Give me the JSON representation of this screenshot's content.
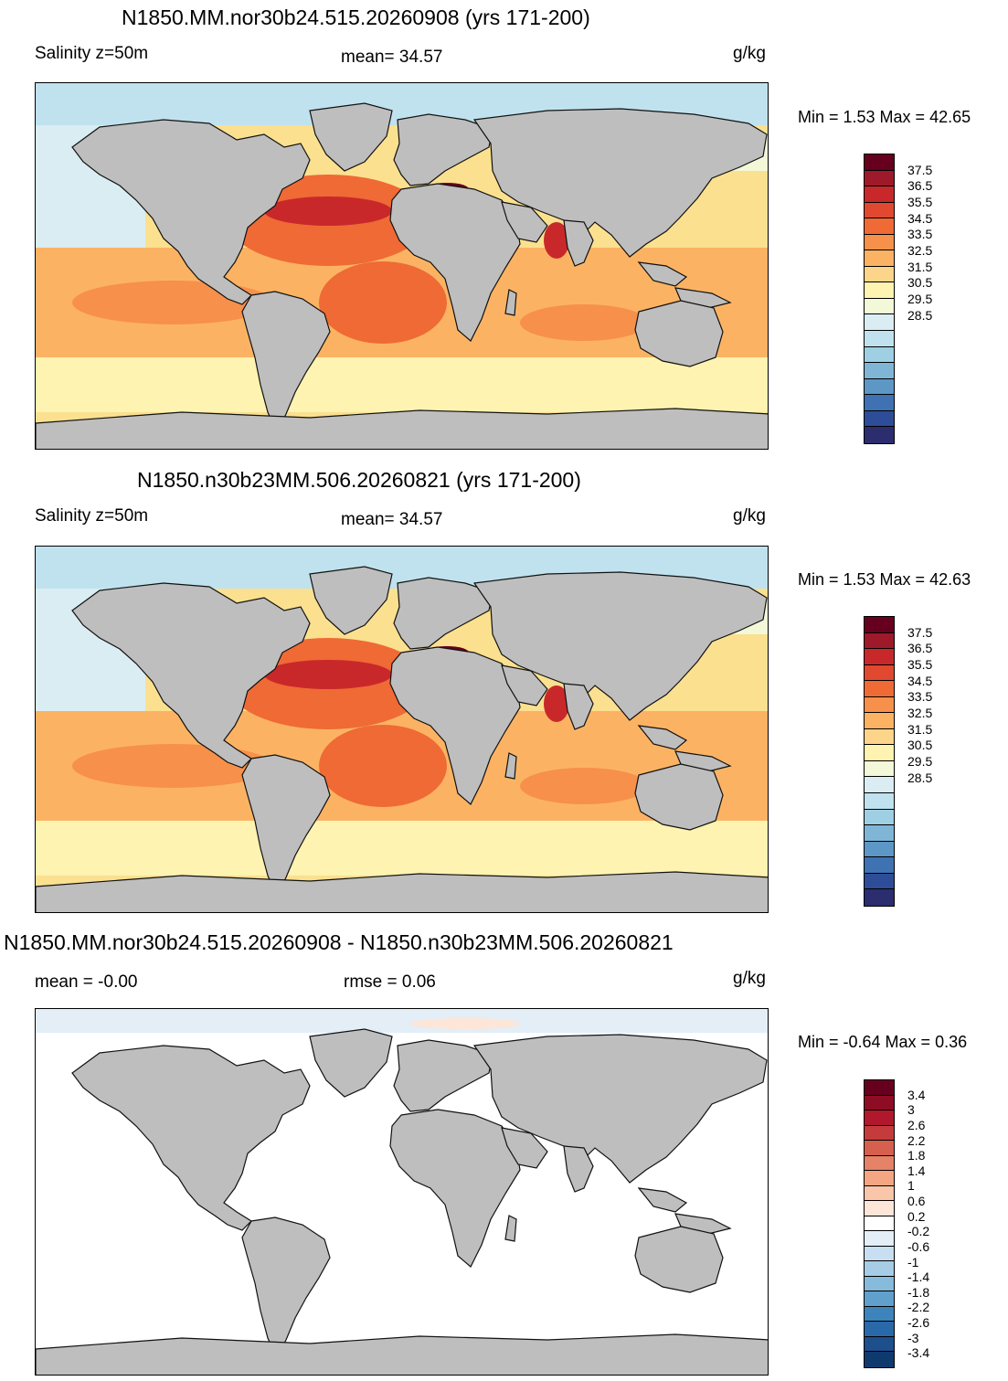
{
  "panels": [
    {
      "title": "N1850.MM.nor30b24.515.20260908 (yrs 171-200)",
      "left_label": "Salinity z=50m",
      "center_label": "mean=  34.57",
      "units": "g/kg",
      "minmax": "Min =   1.53 Max =  42.65",
      "colorbar": {
        "labels": [
          "37.5",
          "36.5",
          "35.5",
          "34.5",
          "33.5",
          "32.5",
          "31.5",
          "30.5",
          "29.5",
          "28.5"
        ],
        "colors": [
          "#67001f",
          "#9e1a2b",
          "#c9282b",
          "#e0492f",
          "#ef6a34",
          "#f7904a",
          "#fbb363",
          "#fdd58a",
          "#fef3b0",
          "#f2f8d8",
          "#daedf3",
          "#bfe2ee",
          "#9fcfe3",
          "#7fb6d6",
          "#5d97c6",
          "#3e72b2",
          "#2e4d98",
          "#2b2d6e"
        ]
      }
    },
    {
      "title": "N1850.n30b23MM.506.20260821 (yrs 171-200)",
      "left_label": "Salinity z=50m",
      "center_label": "mean=  34.57",
      "units": "g/kg",
      "minmax": "Min =   1.53 Max =  42.63",
      "colorbar": {
        "labels": [
          "37.5",
          "36.5",
          "35.5",
          "34.5",
          "33.5",
          "32.5",
          "31.5",
          "30.5",
          "29.5",
          "28.5"
        ],
        "colors": [
          "#67001f",
          "#9e1a2b",
          "#c9282b",
          "#e0492f",
          "#ef6a34",
          "#f7904a",
          "#fbb363",
          "#fdd58a",
          "#fef3b0",
          "#f2f8d8",
          "#daedf3",
          "#bfe2ee",
          "#9fcfe3",
          "#7fb6d6",
          "#5d97c6",
          "#3e72b2",
          "#2e4d98",
          "#2b2d6e"
        ]
      }
    },
    {
      "title": "N1850.MM.nor30b24.515.20260908 - N1850.n30b23MM.506.20260821",
      "left_label": "mean =  -0.00",
      "center_label": "rmse =    0.06",
      "units": "g/kg",
      "minmax": "Min =  -0.64 Max =   0.36",
      "colorbar": {
        "labels": [
          "3.4",
          "3",
          "2.6",
          "2.2",
          "1.8",
          "1.4",
          "1",
          "0.6",
          "0.2",
          "-0.2",
          "-0.6",
          "-1",
          "-1.4",
          "-1.8",
          "-2.2",
          "-2.6",
          "-3",
          "-3.4"
        ],
        "colors": [
          "#67001f",
          "#8f0c25",
          "#b2182b",
          "#c53b3c",
          "#d6604d",
          "#e58267",
          "#f4a582",
          "#f9c6aa",
          "#fde5d8",
          "#ffffff",
          "#e3eef6",
          "#c7dff0",
          "#a6cde5",
          "#86bbdb",
          "#5fa0cd",
          "#3d84bd",
          "#2a69a9",
          "#1d4f8d",
          "#0f3a6e"
        ]
      }
    }
  ],
  "oceans": {
    "sea_base": "#fbe08f",
    "gulf_stream": "#c9282b",
    "subtropics": "#f7904a",
    "arctic": "#bfe2ee",
    "mediterranean": "#67001f",
    "land": "#bebebe",
    "diff_background": "#ffffff"
  }
}
